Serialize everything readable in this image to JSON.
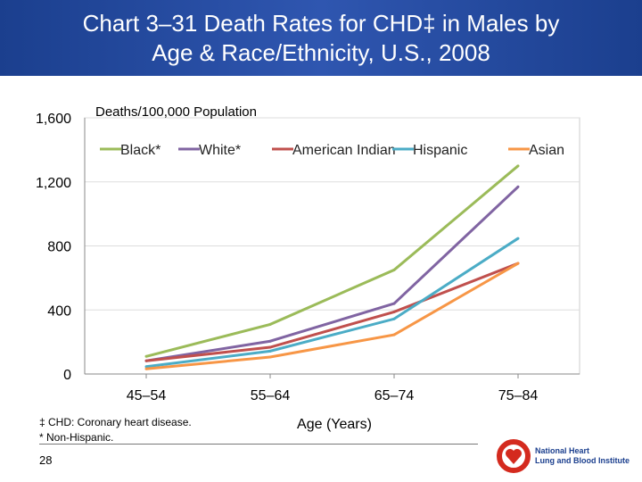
{
  "title_line1": "Chart 3–31  Death Rates for CHD‡ in Males by",
  "title_line2": "Age & Race/Ethnicity, U.S., 2008",
  "footnotes": [
    "‡ CHD: Coronary heart disease.",
    "* Non-Hispanic."
  ],
  "page_number": "28",
  "logo": {
    "line1": "National Heart",
    "line2": "Lung and Blood Institute"
  },
  "chart_data": {
    "type": "line",
    "ylabel": "Deaths/100,000 Population",
    "xlabel": "Age (Years)",
    "categories": [
      "45–54",
      "55–64",
      "65–74",
      "75–84"
    ],
    "ylim": [
      0,
      1600
    ],
    "yticks": [
      "0",
      "400",
      "800",
      "1,200",
      "1,600"
    ],
    "grid": true,
    "legend": "top",
    "series": [
      {
        "name": "Black*",
        "color": "#9bbb59",
        "values": [
          110,
          310,
          650,
          1300
        ]
      },
      {
        "name": "White*",
        "color": "#8064a2",
        "values": [
          82,
          205,
          440,
          1169
        ]
      },
      {
        "name": "American Indian",
        "color": "#c0504d",
        "values": [
          82,
          167,
          388,
          691
        ]
      },
      {
        "name": "Hispanic",
        "color": "#4bacc6",
        "values": [
          46,
          143,
          344,
          847
        ]
      },
      {
        "name": "Asian",
        "color": "#f79646",
        "values": [
          32,
          106,
          245,
          691
        ]
      }
    ]
  }
}
